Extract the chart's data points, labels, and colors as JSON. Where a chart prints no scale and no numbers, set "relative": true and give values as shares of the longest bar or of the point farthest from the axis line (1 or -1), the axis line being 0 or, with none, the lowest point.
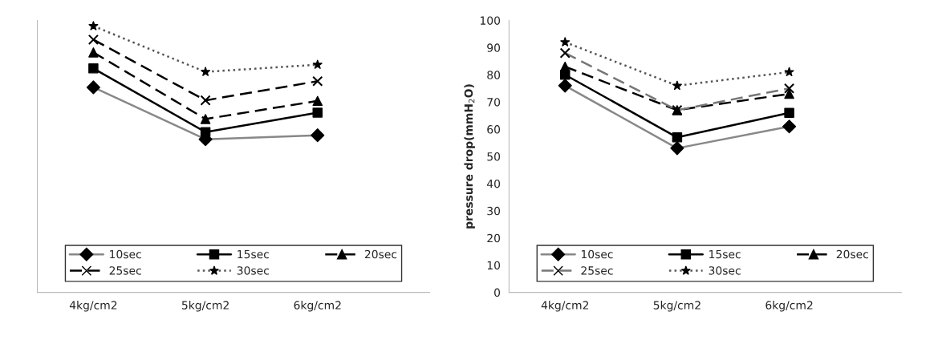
{
  "chart_data": [
    {
      "type": "line",
      "relative": true,
      "categories": [
        "4kg/cm2",
        "5kg/cm2",
        "6kg/cm2"
      ],
      "legend": "bottom",
      "series": [
        {
          "name": "10sec",
          "color": "#888888",
          "values": [
            0.77,
            0.575,
            0.59
          ],
          "marker": "diamond",
          "line_style": "solid"
        },
        {
          "name": "15sec",
          "color": "#000000",
          "values": [
            0.841,
            0.602,
            0.675
          ],
          "marker": "square",
          "line_style": "solid"
        },
        {
          "name": "20sec",
          "color": "#000000",
          "values": [
            0.901,
            0.651,
            0.719
          ],
          "marker": "triangle",
          "line_style": "dashed"
        },
        {
          "name": "25sec",
          "color": "#000000",
          "values": [
            0.949,
            0.721,
            0.793
          ],
          "marker": "cross",
          "line_style": "dashed"
        },
        {
          "name": "30sec",
          "color": "#555555",
          "values": [
            1.0,
            0.828,
            0.855
          ],
          "marker": "star",
          "line_style": "dotted"
        }
      ]
    },
    {
      "type": "line",
      "ylabel": "pressure drop(mmH$_{2}$O)",
      "categories": [
        "4kg/cm2",
        "5kg/cm2",
        "6kg/cm2"
      ],
      "ylim": [
        0,
        100
      ],
      "yticks": [
        0,
        10,
        20,
        30,
        40,
        50,
        60,
        70,
        80,
        90,
        100
      ],
      "legend": "bottom",
      "series": [
        {
          "name": "10sec",
          "color": "#888888",
          "values": [
            76,
            53,
            61
          ],
          "marker": "diamond",
          "line_style": "solid"
        },
        {
          "name": "15sec",
          "color": "#000000",
          "values": [
            80,
            57,
            66
          ],
          "marker": "square",
          "line_style": "solid"
        },
        {
          "name": "20sec",
          "color": "#000000",
          "values": [
            83,
            67,
            73
          ],
          "marker": "triangle",
          "line_style": "dashed"
        },
        {
          "name": "25sec",
          "color": "#777777",
          "values": [
            88,
            67,
            75
          ],
          "marker": "cross",
          "line_style": "dashed"
        },
        {
          "name": "30sec",
          "color": "#555555",
          "values": [
            92,
            76,
            81
          ],
          "marker": "star",
          "line_style": "dotted"
        }
      ]
    }
  ]
}
